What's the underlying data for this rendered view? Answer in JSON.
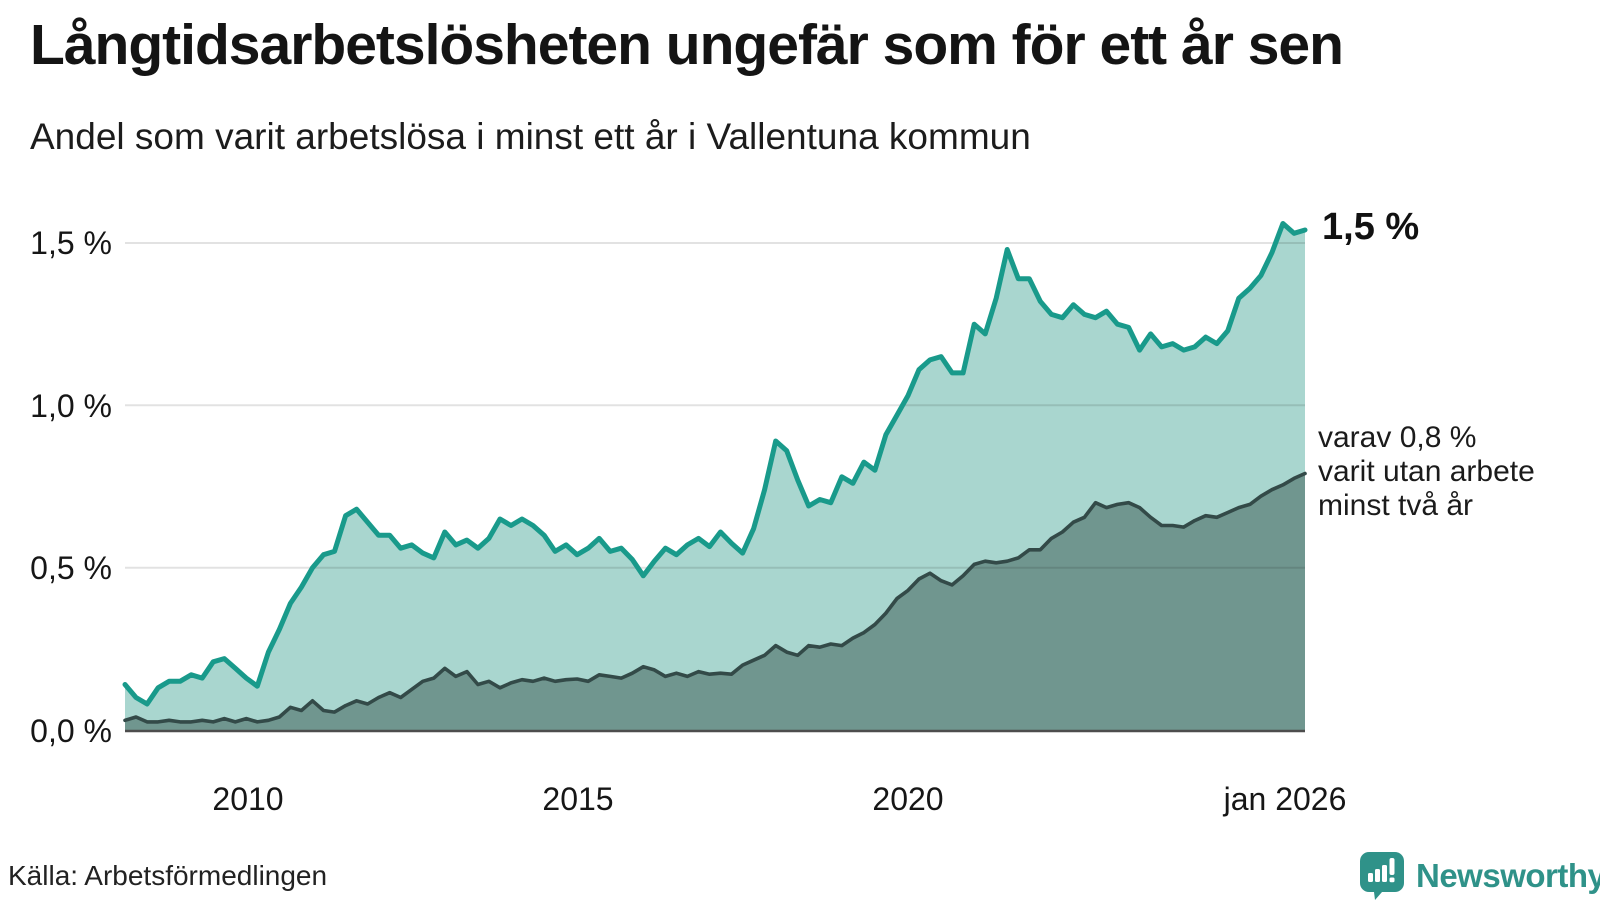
{
  "header": {
    "title": "Långtidsarbetslösheten ungefär som för ett år sen",
    "subtitle": "Andel som varit arbetslösa i minst ett år i Vallentuna kommun"
  },
  "axes": {
    "y_ticks": [
      "1,5 %",
      "1,0 %",
      "0,5 %",
      "0,0 %"
    ],
    "x_ticks": [
      "2010",
      "2015",
      "2020",
      "jan 2026"
    ]
  },
  "annotations": {
    "latest_value": "1,5 %",
    "secondary": "varav 0,8 %\nvarit utan arbete\nminst två år"
  },
  "footer": {
    "source": "Källa: Arbetsförmedlingen",
    "brand": "Newsworthy"
  },
  "colors": {
    "line_1yr": "#199a8b",
    "fill_1yr": "#a9d6cf",
    "line_2yr": "#334a48",
    "fill_2yr": "#70968f",
    "brand_teal": "#2f9289"
  },
  "chart_data": {
    "type": "area",
    "title": "Långtidsarbetslösheten ungefär som för ett år sen",
    "subtitle": "Andel som varit arbetslösa i minst ett år i Vallentuna kommun",
    "x_start": "2008-02",
    "x_end": "2026-01",
    "x_step_months": 2,
    "y_unit": "%",
    "ylim": [
      0,
      1.62
    ],
    "y_gridlines": [
      1.5,
      1.0,
      0.5
    ],
    "x_tick_years": [
      2010,
      2015,
      2020,
      2026
    ],
    "legend_position": "annotated-right",
    "series": [
      {
        "name": "Andel arbetslösa minst ett år",
        "latest": 1.5,
        "color": "#199a8b",
        "fill": "#a9d6cf",
        "values": [
          0.14,
          0.1,
          0.08,
          0.13,
          0.15,
          0.15,
          0.17,
          0.16,
          0.21,
          0.22,
          0.19,
          0.16,
          0.135,
          0.24,
          0.31,
          0.39,
          0.44,
          0.5,
          0.54,
          0.55,
          0.66,
          0.68,
          0.64,
          0.6,
          0.6,
          0.56,
          0.57,
          0.545,
          0.53,
          0.61,
          0.57,
          0.585,
          0.56,
          0.59,
          0.65,
          0.63,
          0.65,
          0.63,
          0.6,
          0.55,
          0.57,
          0.54,
          0.56,
          0.59,
          0.55,
          0.56,
          0.525,
          0.475,
          0.52,
          0.56,
          0.54,
          0.57,
          0.59,
          0.565,
          0.61,
          0.575,
          0.545,
          0.62,
          0.74,
          0.89,
          0.86,
          0.77,
          0.69,
          0.71,
          0.7,
          0.78,
          0.76,
          0.825,
          0.8,
          0.91,
          0.97,
          1.03,
          1.11,
          1.14,
          1.15,
          1.1,
          1.1,
          1.25,
          1.22,
          1.33,
          1.48,
          1.39,
          1.39,
          1.32,
          1.28,
          1.27,
          1.31,
          1.28,
          1.27,
          1.29,
          1.25,
          1.24,
          1.17,
          1.22,
          1.18,
          1.19,
          1.17,
          1.18,
          1.21,
          1.19,
          1.23,
          1.33,
          1.36,
          1.4,
          1.47,
          1.56,
          1.53,
          1.54
        ]
      },
      {
        "name": "varav utan arbete minst två år",
        "latest": 0.8,
        "color": "#334a48",
        "fill": "#70968f",
        "values": [
          0.03,
          0.04,
          0.025,
          0.025,
          0.03,
          0.025,
          0.025,
          0.03,
          0.025,
          0.035,
          0.025,
          0.035,
          0.025,
          0.03,
          0.04,
          0.07,
          0.06,
          0.09,
          0.06,
          0.055,
          0.075,
          0.09,
          0.08,
          0.1,
          0.115,
          0.1,
          0.125,
          0.15,
          0.16,
          0.19,
          0.165,
          0.18,
          0.14,
          0.15,
          0.13,
          0.145,
          0.155,
          0.15,
          0.16,
          0.15,
          0.155,
          0.157,
          0.15,
          0.17,
          0.165,
          0.16,
          0.175,
          0.195,
          0.185,
          0.165,
          0.175,
          0.165,
          0.18,
          0.172,
          0.175,
          0.172,
          0.2,
          0.215,
          0.23,
          0.26,
          0.24,
          0.23,
          0.26,
          0.255,
          0.265,
          0.26,
          0.283,
          0.3,
          0.325,
          0.36,
          0.405,
          0.43,
          0.465,
          0.483,
          0.46,
          0.447,
          0.475,
          0.51,
          0.52,
          0.515,
          0.52,
          0.53,
          0.555,
          0.555,
          0.59,
          0.61,
          0.64,
          0.655,
          0.7,
          0.685,
          0.695,
          0.7,
          0.685,
          0.655,
          0.63,
          0.63,
          0.625,
          0.645,
          0.66,
          0.655,
          0.67,
          0.685,
          0.695,
          0.72,
          0.74,
          0.755,
          0.775,
          0.79
        ]
      }
    ]
  }
}
